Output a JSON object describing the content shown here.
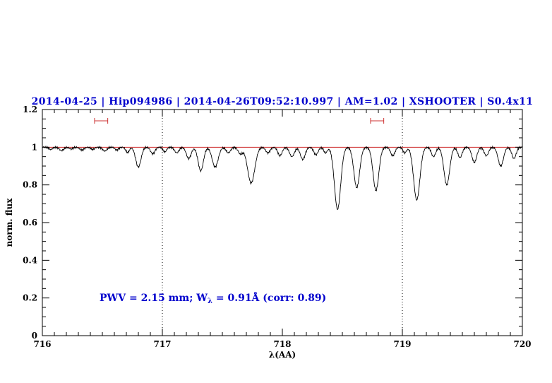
{
  "header": {
    "title": "2014-04-25 | Hip094986 | 2014-04-26T09:52:10.997 | AM=1.02 | XSHOOTER | S0.4x11"
  },
  "annotation": {
    "prefix": "PWV = 2.15 mm; W",
    "sub": "λ",
    "suffix": " = 0.91Å (corr: 0.89)"
  },
  "chart_data": {
    "type": "line",
    "title": "2014-04-25 | Hip094986 | 2014-04-26T09:52:10.997 | AM=1.02 | XSHOOTER | S0.4x11",
    "xlabel": "λ(AA)",
    "ylabel": "norm. flux",
    "xlim": [
      716,
      720
    ],
    "ylim": [
      0,
      1.2
    ],
    "grid": false,
    "legend": "none",
    "xticks": {
      "major": [
        716,
        717,
        718,
        719,
        720
      ],
      "labels": [
        "716",
        "717",
        "718",
        "719",
        "720"
      ],
      "minor_step": 0.1
    },
    "yticks": {
      "major": [
        0,
        0.2,
        0.4,
        0.6,
        0.8,
        1,
        1.2
      ],
      "labels": [
        "0",
        "0.2",
        "0.4",
        "0.6",
        "0.8",
        "1",
        "1.2"
      ],
      "minor_step": 0.05
    },
    "dotted_vlines": [
      717,
      719
    ],
    "continuum": {
      "y": 1.0
    },
    "range_markers": [
      {
        "x_center": 716.49,
        "half_width": 0.055,
        "y": 1.14
      },
      {
        "x_center": 718.79,
        "half_width": 0.055,
        "y": 1.14
      }
    ],
    "colors": {
      "spectrum": "#000000",
      "continuum": "#cc2222",
      "marker": "#cc3333",
      "title": "#0000cd",
      "annotation": "#0000cd",
      "axis": "#000000"
    },
    "absorption_lines": [
      {
        "c": 716.07,
        "d": 0.012,
        "s": 0.015
      },
      {
        "c": 716.16,
        "d": 0.018,
        "s": 0.018
      },
      {
        "c": 716.24,
        "d": 0.01,
        "s": 0.015
      },
      {
        "c": 716.33,
        "d": 0.015,
        "s": 0.018
      },
      {
        "c": 716.42,
        "d": 0.012,
        "s": 0.015
      },
      {
        "c": 716.52,
        "d": 0.02,
        "s": 0.018
      },
      {
        "c": 716.62,
        "d": 0.015,
        "s": 0.015
      },
      {
        "c": 716.71,
        "d": 0.028,
        "s": 0.015
      },
      {
        "c": 716.8,
        "d": 0.105,
        "s": 0.022
      },
      {
        "c": 716.92,
        "d": 0.035,
        "s": 0.018
      },
      {
        "c": 717.02,
        "d": 0.025,
        "s": 0.015
      },
      {
        "c": 717.12,
        "d": 0.03,
        "s": 0.018
      },
      {
        "c": 717.22,
        "d": 0.06,
        "s": 0.02
      },
      {
        "c": 717.32,
        "d": 0.125,
        "s": 0.022
      },
      {
        "c": 717.44,
        "d": 0.105,
        "s": 0.025
      },
      {
        "c": 717.55,
        "d": 0.03,
        "s": 0.018
      },
      {
        "c": 717.65,
        "d": 0.035,
        "s": 0.018
      },
      {
        "c": 717.74,
        "d": 0.19,
        "s": 0.03
      },
      {
        "c": 717.88,
        "d": 0.03,
        "s": 0.018
      },
      {
        "c": 717.98,
        "d": 0.045,
        "s": 0.018
      },
      {
        "c": 718.08,
        "d": 0.05,
        "s": 0.02
      },
      {
        "c": 718.17,
        "d": 0.065,
        "s": 0.02
      },
      {
        "c": 718.28,
        "d": 0.04,
        "s": 0.018
      },
      {
        "c": 718.36,
        "d": 0.03,
        "s": 0.015
      },
      {
        "c": 718.46,
        "d": 0.33,
        "s": 0.026
      },
      {
        "c": 718.62,
        "d": 0.215,
        "s": 0.024
      },
      {
        "c": 718.78,
        "d": 0.23,
        "s": 0.024
      },
      {
        "c": 718.92,
        "d": 0.045,
        "s": 0.018
      },
      {
        "c": 719.02,
        "d": 0.03,
        "s": 0.015
      },
      {
        "c": 719.12,
        "d": 0.28,
        "s": 0.026
      },
      {
        "c": 719.26,
        "d": 0.05,
        "s": 0.018
      },
      {
        "c": 719.37,
        "d": 0.2,
        "s": 0.024
      },
      {
        "c": 719.48,
        "d": 0.055,
        "s": 0.018
      },
      {
        "c": 719.6,
        "d": 0.08,
        "s": 0.02
      },
      {
        "c": 719.7,
        "d": 0.045,
        "s": 0.018
      },
      {
        "c": 719.82,
        "d": 0.1,
        "s": 0.022
      },
      {
        "c": 719.93,
        "d": 0.06,
        "s": 0.018
      }
    ]
  }
}
